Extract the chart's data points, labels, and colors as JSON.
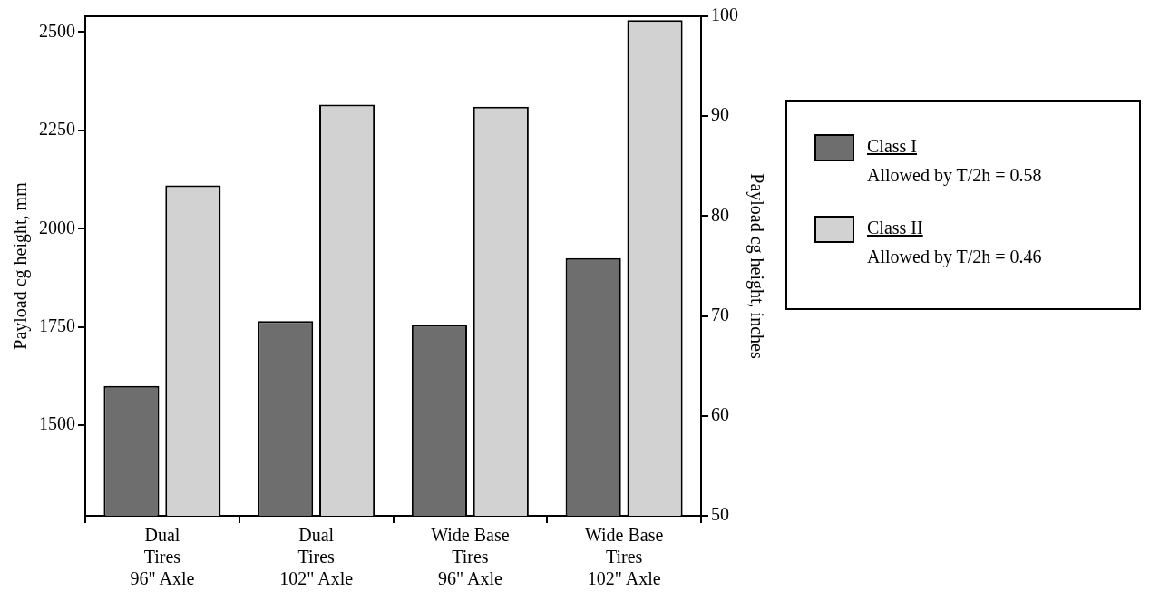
{
  "chart_data": {
    "type": "bar",
    "ylabel": "Payload cg height, mm",
    "y2label": "Payload cg height, inches",
    "categories": [
      "Dual\nTires\n96\" Axle",
      "Dual\nTires\n102\" Axle",
      "Wide Base\nTires\n96\" Axle",
      "Wide Base\nTires\n102\" Axle"
    ],
    "series": [
      {
        "name": "Class I",
        "color": "#6e6e6e",
        "values": [
          1600,
          1765,
          1755,
          1925
        ]
      },
      {
        "name": "Class II",
        "color": "#d2d2d2",
        "values": [
          2110,
          2315,
          2310,
          2530
        ]
      }
    ],
    "ylim": [
      1270,
      2540
    ],
    "yticks": [
      1500,
      1750,
      2000,
      2250,
      2500
    ],
    "y2lim": [
      50,
      100
    ],
    "y2ticks": [
      50,
      60,
      70,
      80,
      90,
      100
    ],
    "annotations": [
      "Allowed by T/2h = 0.58",
      "Allowed by T/2h = 0.46"
    ],
    "legend": "right",
    "grid": false
  }
}
